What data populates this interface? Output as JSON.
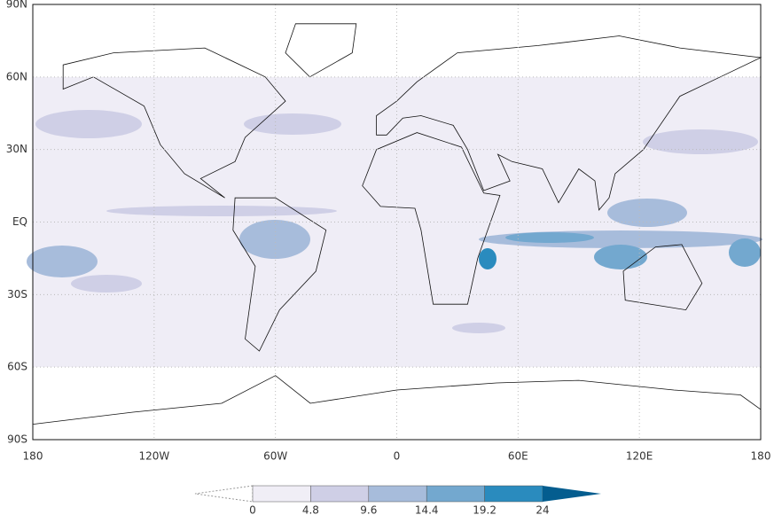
{
  "map": {
    "lat_labels": [
      "90N",
      "60N",
      "30N",
      "EQ",
      "30S",
      "60S",
      "90S"
    ],
    "lon_labels": [
      "180",
      "120W",
      "60W",
      "0",
      "60E",
      "120E",
      "180"
    ]
  },
  "colorbar": {
    "levels": [
      0,
      4.8,
      9.6,
      14.4,
      19.2,
      24
    ],
    "colors": [
      "#f0eef6",
      "#cfcfe6",
      "#a7bcdb",
      "#73a8cf",
      "#2a8bbe",
      "#045d8f"
    ]
  }
}
